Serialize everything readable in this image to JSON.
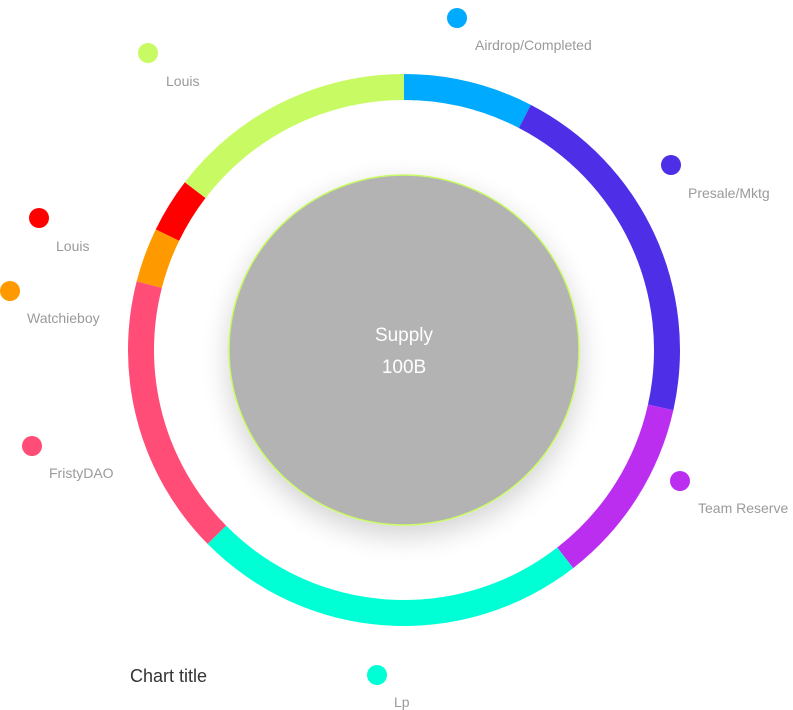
{
  "chart_data": {
    "type": "pie",
    "variant": "donut",
    "title": "Chart title",
    "center": {
      "label": "Supply",
      "value": "100B"
    },
    "slices": [
      {
        "name": "Airdrop/Completed",
        "value": 7.6,
        "color": "#00AAFF"
      },
      {
        "name": "Presale/Mktg",
        "value": 20.9,
        "color": "#4F2EE8"
      },
      {
        "name": "Team Reserve",
        "value": 11.0,
        "color": "#BB2EF0"
      },
      {
        "name": "Lp",
        "value": 23.1,
        "color": "#00FFD5"
      },
      {
        "name": "FristyDAO",
        "value": 16.4,
        "color": "#FF4D77"
      },
      {
        "name": "Watchieboy",
        "value": 3.2,
        "color": "#FF9900"
      },
      {
        "name": "Louis",
        "value": 3.2,
        "color": "#FF0000"
      },
      {
        "name": "Louis",
        "value": 14.6,
        "color": "#C8FA64"
      }
    ],
    "inner_circle_color": "#B3B3B3",
    "inner_circle_border_color": "#C8FA64"
  }
}
